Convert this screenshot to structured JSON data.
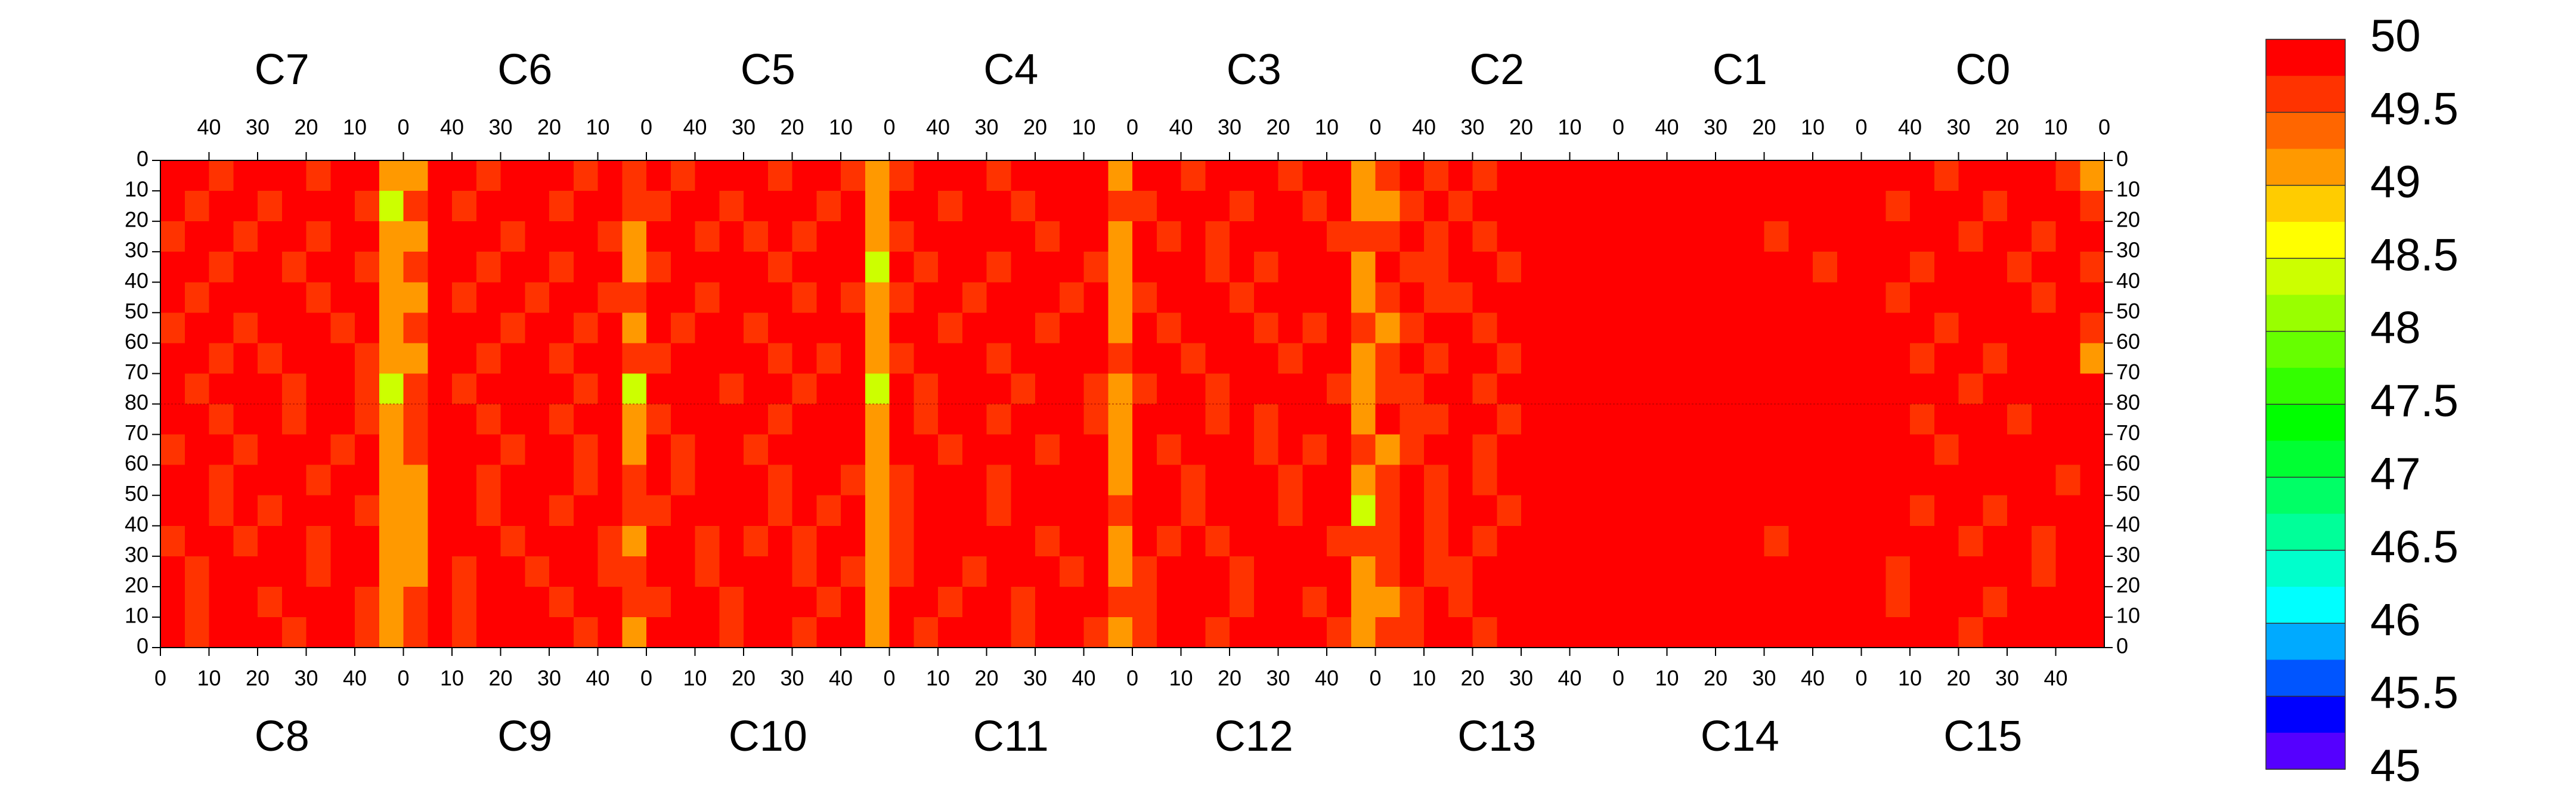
{
  "chart_data": {
    "type": "heatmap",
    "panels_top": [
      "C7",
      "C6",
      "C5",
      "C4",
      "C3",
      "C2",
      "C1",
      "C0"
    ],
    "panels_bottom": [
      "C8",
      "C9",
      "C10",
      "C11",
      "C12",
      "C13",
      "C14",
      "C15"
    ],
    "xlim": [
      0,
      50
    ],
    "xticks": [
      0,
      10,
      20,
      30,
      40
    ],
    "ylim": [
      0,
      80
    ],
    "yticks": [
      0,
      10,
      20,
      30,
      40,
      50,
      60,
      70,
      80
    ],
    "zlim": [
      45,
      50
    ],
    "zticks": [
      50,
      49.5,
      49,
      48.5,
      48,
      47.5,
      47,
      46.5,
      46,
      45.5,
      45
    ],
    "colors": [
      "#ff0000",
      "#ff3300",
      "#ff6600",
      "#ff9900",
      "#ffcc00",
      "#ffff00",
      "#ccff00",
      "#99ff00",
      "#66ff00",
      "#33ff00",
      "#00ff00",
      "#00ff33",
      "#00ff66",
      "#00ff99",
      "#00ffcc",
      "#00ffff",
      "#00aaff",
      "#0055ff",
      "#0000ff",
      "#5500ff"
    ],
    "z": [
      [
        50,
        50,
        49.6,
        50,
        50,
        50,
        49.6,
        50,
        50,
        49.2,
        49.2,
        50,
        50,
        49.6,
        50,
        50,
        50,
        49.6,
        50,
        49.6,
        50,
        49.6,
        50,
        50,
        50,
        49.6,
        50,
        50,
        49.6,
        49.2,
        49.6,
        50,
        50,
        50,
        49.6,
        50,
        50,
        50,
        50,
        49.2,
        50,
        50,
        49.6,
        50,
        50,
        50,
        49.6,
        50,
        50,
        49.2,
        49.6,
        50,
        49.6,
        50,
        49.6,
        50,
        50,
        50,
        50,
        50,
        50,
        50,
        50,
        50,
        50,
        50,
        50,
        50,
        50,
        50,
        50,
        50,
        50,
        49.6,
        50,
        50,
        50,
        50,
        49.6,
        49.2
      ],
      [
        50,
        49.6,
        50,
        50,
        49.6,
        50,
        50,
        50,
        49.6,
        48.4,
        49.6,
        50,
        49.6,
        50,
        50,
        50,
        49.6,
        50,
        50,
        49.6,
        49.6,
        50,
        50,
        49.6,
        50,
        50,
        50,
        49.6,
        50,
        49.2,
        50,
        50,
        49.6,
        50,
        50,
        49.6,
        50,
        50,
        50,
        49.6,
        49.6,
        50,
        50,
        50,
        49.6,
        50,
        50,
        49.6,
        50,
        49.2,
        49.2,
        49.6,
        50,
        49.6,
        50,
        50,
        50,
        50,
        50,
        50,
        50,
        50,
        50,
        50,
        50,
        50,
        50,
        50,
        50,
        50,
        50,
        49.6,
        50,
        50,
        50,
        49.6,
        50,
        50,
        50,
        49.6
      ],
      [
        49.6,
        50,
        50,
        49.6,
        50,
        50,
        49.6,
        50,
        50,
        49.2,
        49.2,
        50,
        50,
        50,
        49.6,
        50,
        50,
        50,
        49.6,
        49.2,
        50,
        50,
        49.6,
        50,
        49.6,
        50,
        49.6,
        50,
        50,
        49.2,
        49.6,
        50,
        50,
        50,
        50,
        50,
        49.6,
        50,
        50,
        49.2,
        50,
        49.6,
        50,
        49.6,
        50,
        50,
        50,
        50,
        49.6,
        49.6,
        49.6,
        50,
        49.6,
        50,
        49.6,
        50,
        50,
        50,
        50,
        50,
        50,
        50,
        50,
        50,
        50,
        50,
        49.6,
        50,
        50,
        50,
        50,
        50,
        50,
        50,
        49.6,
        50,
        50,
        49.6,
        50,
        50
      ],
      [
        50,
        50,
        49.6,
        50,
        50,
        49.6,
        50,
        50,
        49.6,
        49.2,
        49.6,
        50,
        50,
        49.6,
        50,
        50,
        49.6,
        50,
        50,
        49.2,
        49.6,
        50,
        50,
        50,
        50,
        49.6,
        50,
        50,
        50,
        48.4,
        50,
        49.6,
        50,
        50,
        49.6,
        50,
        50,
        50,
        49.6,
        49.2,
        50,
        50,
        50,
        49.6,
        50,
        49.6,
        50,
        50,
        50,
        49.2,
        50,
        49.6,
        49.6,
        50,
        50,
        49.6,
        50,
        50,
        50,
        50,
        50,
        50,
        50,
        50,
        50,
        50,
        50,
        50,
        49.6,
        50,
        50,
        50,
        49.6,
        50,
        50,
        50,
        49.6,
        50,
        50,
        49.6
      ],
      [
        50,
        49.6,
        50,
        50,
        50,
        50,
        49.6,
        50,
        50,
        49.2,
        49.2,
        50,
        49.6,
        50,
        50,
        49.6,
        50,
        50,
        49.6,
        49.6,
        50,
        50,
        49.6,
        50,
        50,
        50,
        49.6,
        50,
        49.6,
        49.2,
        49.6,
        50,
        50,
        49.6,
        50,
        50,
        50,
        49.6,
        50,
        49.2,
        49.6,
        50,
        50,
        50,
        49.6,
        50,
        50,
        50,
        50,
        49.2,
        49.6,
        50,
        49.6,
        49.6,
        50,
        50,
        50,
        50,
        50,
        50,
        50,
        50,
        50,
        50,
        50,
        50,
        50,
        50,
        50,
        50,
        50,
        49.6,
        50,
        50,
        50,
        50,
        50,
        49.6,
        50,
        50
      ],
      [
        49.6,
        50,
        50,
        49.6,
        50,
        50,
        50,
        49.6,
        50,
        49.2,
        49.6,
        50,
        50,
        50,
        49.6,
        50,
        50,
        49.6,
        50,
        49.2,
        50,
        49.6,
        50,
        50,
        49.6,
        50,
        50,
        50,
        50,
        49.2,
        50,
        50,
        49.6,
        50,
        50,
        50,
        49.6,
        50,
        50,
        49.2,
        50,
        49.6,
        50,
        50,
        50,
        49.6,
        50,
        49.6,
        50,
        49.6,
        49.2,
        49.6,
        50,
        50,
        49.6,
        50,
        50,
        50,
        50,
        50,
        50,
        50,
        50,
        50,
        50,
        50,
        50,
        50,
        50,
        50,
        50,
        50,
        50,
        49.6,
        50,
        50,
        50,
        50,
        50,
        49.6
      ],
      [
        50,
        50,
        49.6,
        50,
        49.6,
        50,
        50,
        50,
        49.6,
        49.2,
        49.2,
        50,
        50,
        49.6,
        50,
        50,
        49.6,
        50,
        50,
        49.6,
        49.6,
        50,
        50,
        50,
        50,
        49.6,
        50,
        49.6,
        50,
        49.2,
        49.6,
        50,
        50,
        50,
        49.6,
        50,
        50,
        50,
        50,
        49.6,
        50,
        50,
        49.6,
        50,
        50,
        50,
        49.6,
        50,
        50,
        49.2,
        49.6,
        50,
        49.6,
        50,
        50,
        49.6,
        50,
        50,
        50,
        50,
        50,
        50,
        50,
        50,
        50,
        50,
        50,
        50,
        50,
        50,
        50,
        50,
        49.6,
        50,
        50,
        49.6,
        50,
        50,
        50,
        49.2
      ],
      [
        50,
        49.6,
        50,
        50,
        50,
        49.6,
        50,
        50,
        49.6,
        48.4,
        49.6,
        50,
        49.6,
        50,
        50,
        50,
        50,
        49.6,
        50,
        48.4,
        50,
        50,
        50,
        49.6,
        50,
        50,
        49.6,
        50,
        50,
        48.4,
        50,
        49.6,
        50,
        50,
        50,
        49.6,
        50,
        50,
        49.6,
        49.2,
        49.6,
        50,
        50,
        49.6,
        50,
        50,
        50,
        50,
        49.6,
        49.2,
        49.6,
        49.6,
        50,
        50,
        49.6,
        50,
        50,
        50,
        50,
        50,
        50,
        50,
        50,
        50,
        50,
        50,
        50,
        50,
        50,
        50,
        50,
        50,
        50,
        50,
        49.6,
        50,
        50,
        50,
        50,
        50
      ],
      [
        50,
        50,
        49.6,
        50,
        50,
        49.6,
        50,
        50,
        49.6,
        49.2,
        49.6,
        50,
        50,
        49.6,
        50,
        50,
        49.6,
        50,
        50,
        49.2,
        49.6,
        50,
        50,
        50,
        50,
        49.6,
        50,
        50,
        50,
        49.2,
        50,
        49.6,
        50,
        50,
        49.6,
        50,
        50,
        50,
        49.6,
        49.2,
        50,
        50,
        50,
        49.6,
        50,
        49.6,
        50,
        50,
        50,
        49.2,
        50,
        49.6,
        49.6,
        50,
        50,
        49.6,
        50,
        50,
        50,
        50,
        50,
        50,
        50,
        50,
        50,
        50,
        50,
        50,
        50,
        50,
        50,
        50,
        49.6,
        50,
        50,
        50,
        49.6,
        50,
        50,
        50
      ],
      [
        49.6,
        50,
        50,
        49.6,
        50,
        50,
        50,
        49.6,
        50,
        49.2,
        49.6,
        50,
        50,
        50,
        49.6,
        50,
        50,
        49.6,
        50,
        49.2,
        50,
        49.6,
        50,
        50,
        49.6,
        50,
        50,
        50,
        50,
        49.2,
        50,
        50,
        49.6,
        50,
        50,
        50,
        49.6,
        50,
        50,
        49.2,
        50,
        49.6,
        50,
        50,
        50,
        49.6,
        50,
        49.6,
        50,
        49.6,
        49.2,
        49.6,
        50,
        50,
        49.6,
        50,
        50,
        50,
        50,
        50,
        50,
        50,
        50,
        50,
        50,
        50,
        50,
        50,
        50,
        50,
        50,
        50,
        50,
        49.6,
        50,
        50,
        50,
        50,
        50,
        50
      ],
      [
        50,
        50,
        49.6,
        50,
        50,
        50,
        49.6,
        50,
        50,
        49.2,
        49.2,
        50,
        50,
        49.6,
        50,
        50,
        50,
        49.6,
        50,
        49.6,
        50,
        49.6,
        50,
        50,
        50,
        49.6,
        50,
        50,
        49.6,
        49.2,
        49.6,
        50,
        50,
        50,
        49.6,
        50,
        50,
        50,
        50,
        49.2,
        50,
        50,
        49.6,
        50,
        50,
        50,
        49.6,
        50,
        50,
        49.2,
        49.6,
        50,
        49.6,
        50,
        49.6,
        50,
        50,
        50,
        50,
        50,
        50,
        50,
        50,
        50,
        50,
        50,
        50,
        50,
        50,
        50,
        50,
        50,
        50,
        50,
        50,
        50,
        50,
        50,
        49.6,
        50
      ],
      [
        50,
        50,
        49.6,
        50,
        49.6,
        50,
        50,
        50,
        49.6,
        49.2,
        49.2,
        50,
        50,
        49.6,
        50,
        50,
        49.6,
        50,
        50,
        49.6,
        49.6,
        50,
        50,
        50,
        50,
        49.6,
        50,
        49.6,
        50,
        49.2,
        49.6,
        50,
        50,
        50,
        49.6,
        50,
        50,
        50,
        50,
        49.6,
        50,
        50,
        49.6,
        50,
        50,
        50,
        49.6,
        50,
        50,
        48.4,
        49.6,
        50,
        49.6,
        50,
        50,
        49.6,
        50,
        50,
        50,
        50,
        50,
        50,
        50,
        50,
        50,
        50,
        50,
        50,
        50,
        50,
        50,
        50,
        49.6,
        50,
        50,
        49.6,
        50,
        50,
        50,
        50
      ],
      [
        49.6,
        50,
        50,
        49.6,
        50,
        50,
        49.6,
        50,
        50,
        49.2,
        49.2,
        50,
        50,
        50,
        49.6,
        50,
        50,
        50,
        49.6,
        49.2,
        50,
        50,
        49.6,
        50,
        49.6,
        50,
        49.6,
        50,
        50,
        49.2,
        49.6,
        50,
        50,
        50,
        50,
        50,
        49.6,
        50,
        50,
        49.2,
        50,
        49.6,
        50,
        49.6,
        50,
        50,
        50,
        50,
        49.6,
        49.6,
        49.6,
        50,
        49.6,
        50,
        49.6,
        50,
        50,
        50,
        50,
        50,
        50,
        50,
        50,
        50,
        50,
        50,
        49.6,
        50,
        50,
        50,
        50,
        50,
        50,
        50,
        49.6,
        50,
        50,
        49.6,
        50,
        50
      ],
      [
        50,
        49.6,
        50,
        50,
        50,
        50,
        49.6,
        50,
        50,
        49.2,
        49.2,
        50,
        49.6,
        50,
        50,
        49.6,
        50,
        50,
        49.6,
        49.6,
        50,
        50,
        49.6,
        50,
        50,
        50,
        49.6,
        50,
        49.6,
        49.2,
        49.6,
        50,
        50,
        49.6,
        50,
        50,
        50,
        49.6,
        50,
        49.2,
        49.6,
        50,
        50,
        50,
        49.6,
        50,
        50,
        50,
        50,
        49.2,
        49.6,
        50,
        49.6,
        49.6,
        50,
        50,
        50,
        50,
        50,
        50,
        50,
        50,
        50,
        50,
        50,
        50,
        50,
        50,
        50,
        50,
        50,
        49.6,
        50,
        50,
        50,
        50,
        50,
        49.6,
        50,
        50
      ],
      [
        50,
        49.6,
        50,
        50,
        49.6,
        50,
        50,
        50,
        49.6,
        49.2,
        49.6,
        50,
        49.6,
        50,
        50,
        50,
        49.6,
        50,
        50,
        49.6,
        49.6,
        50,
        50,
        49.6,
        50,
        50,
        50,
        49.6,
        50,
        49.2,
        50,
        50,
        49.6,
        50,
        50,
        49.6,
        50,
        50,
        50,
        49.6,
        49.6,
        50,
        50,
        50,
        49.6,
        50,
        50,
        49.6,
        50,
        49.2,
        49.2,
        49.6,
        50,
        49.6,
        50,
        50,
        50,
        50,
        50,
        50,
        50,
        50,
        50,
        50,
        50,
        50,
        50,
        50,
        50,
        50,
        50,
        49.6,
        50,
        50,
        50,
        49.6,
        50,
        50,
        50,
        50
      ],
      [
        50,
        49.6,
        50,
        50,
        50,
        49.6,
        50,
        50,
        49.6,
        49.2,
        49.6,
        50,
        49.6,
        50,
        50,
        50,
        50,
        49.6,
        50,
        49.2,
        50,
        50,
        50,
        49.6,
        50,
        50,
        49.6,
        50,
        50,
        49.2,
        50,
        49.6,
        50,
        50,
        50,
        49.6,
        50,
        50,
        49.6,
        49.2,
        49.6,
        50,
        50,
        49.6,
        50,
        50,
        50,
        50,
        49.6,
        49.2,
        49.6,
        49.6,
        50,
        50,
        49.6,
        50,
        50,
        50,
        50,
        50,
        50,
        50,
        50,
        50,
        50,
        50,
        50,
        50,
        50,
        50,
        50,
        50,
        50,
        50,
        49.6,
        50,
        50,
        50,
        50,
        50
      ]
    ]
  }
}
